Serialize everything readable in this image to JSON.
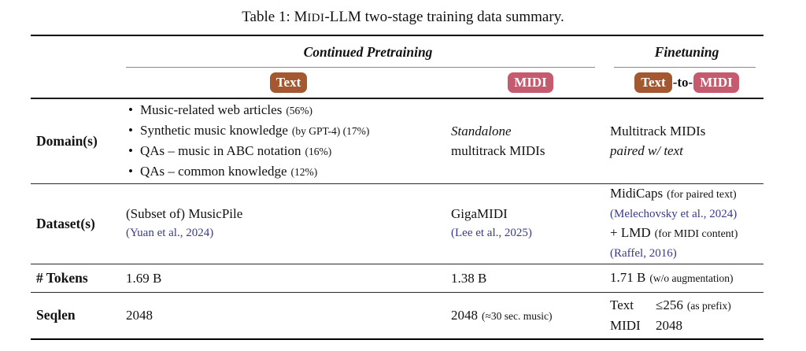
{
  "title": {
    "prefix": "Table 1: M",
    "smallcaps": "IDI",
    "suffix": "-LLM two-stage training data summary."
  },
  "colors": {
    "text_badge": "#a4582f",
    "midi_badge": "#c65b70",
    "citation_link": "#3a3a8c",
    "cmidrule": "#8a8a8a"
  },
  "header": {
    "group1": "Continued Pretraining",
    "group2": "Finetuning",
    "badge_text": "Text",
    "badge_midi": "MIDI",
    "to_connector": "-to-"
  },
  "rows": {
    "domain": {
      "label": "Domain(s)",
      "text_items": [
        {
          "main": "Music-related web articles",
          "note": "(56%)"
        },
        {
          "main": "Synthetic music knowledge",
          "note": "(by GPT-4) (17%)"
        },
        {
          "main": "QAs – music in ABC notation",
          "note": "(16%)"
        },
        {
          "main": "QAs – common knowledge",
          "note": "(12%)"
        }
      ],
      "midi_line1": "Standalone",
      "midi_line2": "multitrack MIDIs",
      "ft_line1": "Multitrack MIDIs",
      "ft_line2": "paired w/ text"
    },
    "dataset": {
      "label": "Dataset(s)",
      "text_main": "(Subset of) MusicPile",
      "text_cite": "(Yuan et al., 2024)",
      "midi_main": "GigaMIDI",
      "midi_cite": "(Lee et al., 2025)",
      "ft_line1_main": "MidiCaps",
      "ft_line1_note": "(for paired text)",
      "ft_cite1": "(Melechovsky et al., 2024)",
      "ft_line2_main": "+ LMD",
      "ft_line2_note": "(for MIDI content)",
      "ft_cite2": "(Raffel, 2016)"
    },
    "tokens": {
      "label": "# Tokens",
      "text": "1.69 B",
      "midi": "1.38 B",
      "ft_main": "1.71 B",
      "ft_note": "(w/o augmentation)"
    },
    "seqlen": {
      "label": "Seqlen",
      "text": "2048",
      "midi_main": "2048",
      "midi_note": "(≈30 sec. music)",
      "ft_row1_key": "Text",
      "ft_row1_val": "≤256",
      "ft_row1_note": "(as prefix)",
      "ft_row2_key": "MIDI",
      "ft_row2_val": "2048"
    }
  }
}
